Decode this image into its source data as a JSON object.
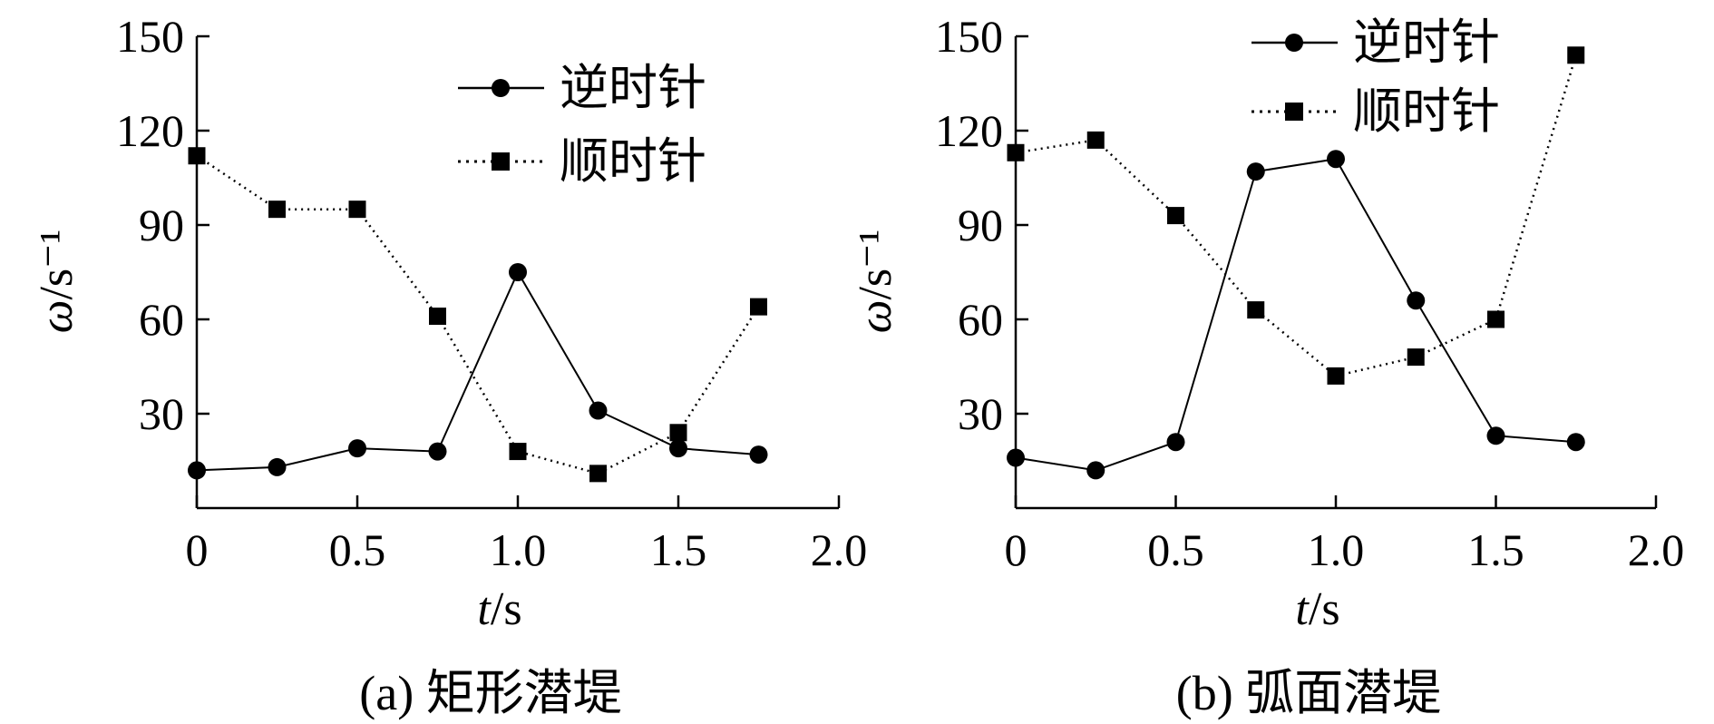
{
  "chart_data": [
    {
      "type": "line",
      "caption": "(a) 矩形潜堤",
      "xlabel": "t/s",
      "ylabel": "ω/s⁻¹",
      "xlim": [
        0,
        2.0
      ],
      "ylim": [
        0,
        150
      ],
      "x_ticks": [
        "0",
        "0.5",
        "1.0",
        "1.5",
        "2.0"
      ],
      "y_ticks": [
        "30",
        "60",
        "90",
        "120",
        "150"
      ],
      "legend_position": "top-right",
      "x": [
        0,
        0.25,
        0.5,
        0.75,
        1.0,
        1.25,
        1.5,
        1.75
      ],
      "series": [
        {
          "name": "逆时针",
          "marker": "circle",
          "line": "solid",
          "values": [
            12,
            13,
            19,
            18,
            75,
            31,
            19,
            17
          ]
        },
        {
          "name": "顺时针",
          "marker": "square",
          "line": "dotted",
          "values": [
            112,
            95,
            95,
            61,
            18,
            11,
            24,
            64
          ]
        }
      ]
    },
    {
      "type": "line",
      "caption": "(b) 弧面潜堤",
      "xlabel": "t/s",
      "ylabel": "ω/s⁻¹",
      "xlim": [
        0,
        2.0
      ],
      "ylim": [
        0,
        150
      ],
      "x_ticks": [
        "0",
        "0.5",
        "1.0",
        "1.5",
        "2.0"
      ],
      "y_ticks": [
        "30",
        "60",
        "90",
        "120",
        "150"
      ],
      "legend_position": "top-right",
      "x": [
        0,
        0.25,
        0.5,
        0.75,
        1.0,
        1.25,
        1.5,
        1.75
      ],
      "series": [
        {
          "name": "逆时针",
          "marker": "circle",
          "line": "solid",
          "values": [
            16,
            12,
            21,
            107,
            111,
            66,
            23,
            21
          ]
        },
        {
          "name": "顺时针",
          "marker": "square",
          "line": "dotted",
          "values": [
            113,
            117,
            93,
            63,
            42,
            48,
            60,
            144
          ]
        }
      ]
    }
  ]
}
